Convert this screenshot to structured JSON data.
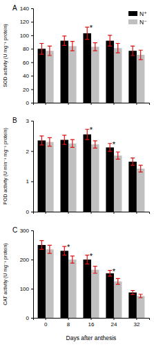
{
  "chart_data": [
    {
      "type": "bar",
      "title": "A",
      "y_label": "SOD activity (U mg⁻¹ protein)",
      "categories": [
        "0",
        "8",
        "16",
        "24",
        "32"
      ],
      "series": [
        {
          "name": "N⁺",
          "color": "#000000",
          "values": [
            80,
            92,
            103,
            92,
            77
          ],
          "errors": [
            8,
            7,
            9,
            8,
            7
          ]
        },
        {
          "name": "N⁻",
          "color": "#c0c0c0",
          "values": [
            77,
            84,
            83,
            81,
            71
          ],
          "errors": [
            7,
            7,
            6,
            7,
            7
          ]
        }
      ],
      "ylim": [
        0,
        140
      ],
      "yticks": [
        0,
        20,
        40,
        60,
        80,
        100,
        120,
        140
      ],
      "legend": "upper right",
      "tick_labels": "y",
      "annotations": [
        {
          "x": "16",
          "text": "*"
        }
      ]
    },
    {
      "type": "bar",
      "title": "B",
      "y_label": "POD activity (U min⁻¹ mg⁻¹ protein)",
      "categories": [
        "0",
        "8",
        "16",
        "24",
        "32"
      ],
      "series": [
        {
          "color": "#000000",
          "values": [
            2.35,
            2.37,
            2.55,
            2.12,
            1.65
          ],
          "errors": [
            0.15,
            0.15,
            0.17,
            0.13,
            0.12
          ]
        },
        {
          "color": "#c0c0c0",
          "values": [
            2.3,
            2.25,
            2.22,
            1.85,
            1.42
          ],
          "errors": [
            0.14,
            0.13,
            0.12,
            0.12,
            0.11
          ]
        }
      ],
      "ylim": [
        0,
        3
      ],
      "yticks": [
        0,
        1,
        2,
        3
      ],
      "tick_labels": "y",
      "annotations": [
        {
          "x": "16",
          "text": "*"
        },
        {
          "x": "24",
          "text": "*"
        }
      ]
    },
    {
      "type": "bar",
      "title": "C",
      "y_label": "CAT activity (U mg⁻¹ protein)",
      "x_label": "Days after anthesis",
      "categories": [
        "0",
        "8",
        "16",
        "24",
        "32"
      ],
      "series": [
        {
          "color": "#000000",
          "values": [
            250,
            230,
            200,
            153,
            87
          ],
          "errors": [
            15,
            15,
            15,
            10,
            7
          ]
        },
        {
          "color": "#c0c0c0",
          "values": [
            235,
            200,
            165,
            125,
            75
          ],
          "errors": [
            14,
            12,
            12,
            10,
            6
          ]
        }
      ],
      "ylim": [
        0,
        300
      ],
      "yticks": [
        0,
        100,
        200,
        300
      ],
      "annotations": [
        {
          "x": "8",
          "text": "*"
        },
        {
          "x": "16",
          "text": "*"
        },
        {
          "x": "24",
          "text": "*"
        }
      ]
    }
  ]
}
